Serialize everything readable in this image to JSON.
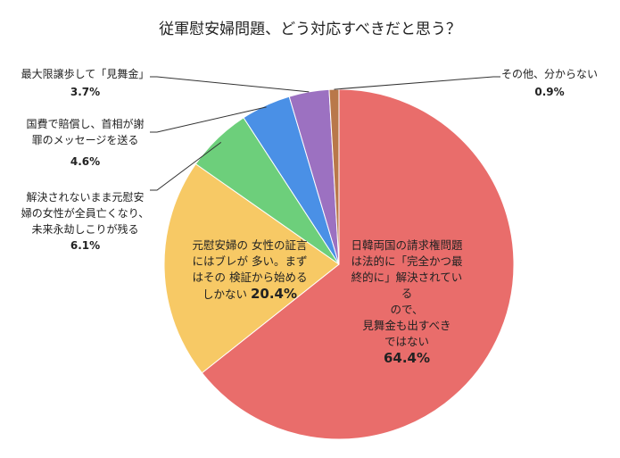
{
  "chart_data": {
    "type": "pie",
    "title": "従軍慰安婦問題、どう対応すべきだと思う？",
    "slices": [
      {
        "label": "日韓両国の請求権問題は法的に「完全かつ最終的に」解決されているので、見舞金も出すべきではない",
        "value": 64.4,
        "value_label": "64.4%",
        "color": "#E96D6B"
      },
      {
        "label": "元慰安婦の女性の証言にはブレが多い。まずはその検証から始めるしかない",
        "value": 20.4,
        "value_label": "20.4%",
        "color": "#F7C965"
      },
      {
        "label": "解決されないまま元慰安婦の女性が全員亡くなり、未来永劫しこりが残る",
        "value": 6.1,
        "value_label": "6.1%",
        "color": "#6DCF7B"
      },
      {
        "label": "国費で賠償し、首相が謝罪のメッセージを送る",
        "value": 4.6,
        "value_label": "4.6%",
        "color": "#4A90E6"
      },
      {
        "label": "最大限譲歩して「見舞金」",
        "value": 3.7,
        "value_label": "3.7%",
        "color": "#9C71C1"
      },
      {
        "label": "その他、分からない",
        "value": 0.9,
        "value_label": "0.9%",
        "color": "#B9784A"
      }
    ],
    "start": "top",
    "direction": "clockwise"
  },
  "labels": {
    "s0": [
      "日韓両国の請求権問題",
      "は法的に「完全かつ最",
      "終的に」解決されている",
      "ので、",
      "見舞金も出すべき",
      "ではない"
    ],
    "s1": [
      "元慰安婦の 女性の証言",
      "にはブレが 多い。まず",
      "はその 検証から始める",
      "しかない"
    ],
    "s2": [
      "解決されないまま元慰安",
      "婦の女性が全員亡くなり、",
      "未来永劫しこりが残る"
    ],
    "s3": [
      "国費で賠償し、首相が謝",
      "罪のメッセージを送る"
    ],
    "s4": [
      "最大限譲歩して「見舞金」"
    ],
    "s5": [
      "その他、分からない"
    ]
  }
}
